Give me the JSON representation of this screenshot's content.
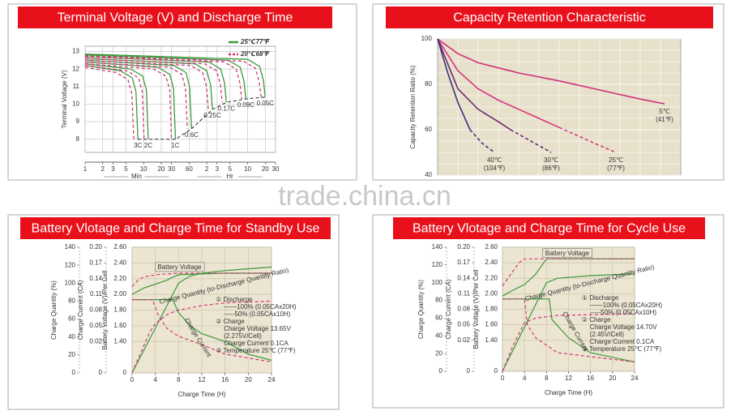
{
  "chart_data": [
    {
      "type": "line",
      "title": "Terminal Voltage (V) and Discharge Time",
      "ylabel": "Terminal Voltage (V)",
      "x_units": [
        "Min",
        "Hr"
      ],
      "log_x": true,
      "xlim": [
        1,
        1800
      ],
      "xticks": [
        1,
        2,
        3,
        5,
        10,
        20,
        30,
        60,
        {
          "value": 120,
          "label": "2"
        },
        {
          "value": 180,
          "label": "3"
        },
        {
          "value": 300,
          "label": "5"
        },
        {
          "value": 600,
          "label": "10"
        },
        {
          "value": 1200,
          "label": "20"
        },
        {
          "value": 1800,
          "label": "30"
        }
      ],
      "ylim": [
        7.25,
        13.3
      ],
      "yticks": [
        8,
        9,
        10,
        11,
        12,
        13
      ],
      "grid": true,
      "legend": "upper right",
      "series": [
        {
          "name": "25℃77℉",
          "color": "#3a9a3a",
          "dashed": false
        },
        {
          "name": "20℃68℉",
          "color": "#d3357a",
          "dashed": true
        }
      ],
      "curves": [
        {
          "label": "3C",
          "lines": [
            {
              "x": [
                1,
                4,
                6.4,
                7.4,
                8
              ],
              "values": [
                12.2,
                11.9,
                11.5,
                10.7,
                8
              ]
            },
            {
              "x": [
                1,
                3.4,
                5.4,
                6.3,
                6.8
              ],
              "values": [
                12.1,
                11.8,
                11.4,
                10.6,
                8
              ]
            }
          ]
        },
        {
          "label": "2C",
          "lines": [
            {
              "x": [
                1,
                6,
                9.6,
                11.2,
                12
              ],
              "values": [
                12.3,
                12,
                11.6,
                10.8,
                8
              ]
            },
            {
              "x": [
                1,
                5.1,
                8.2,
                9.5,
                10.2
              ],
              "values": [
                12.2,
                11.9,
                11.5,
                10.7,
                8
              ]
            }
          ]
        },
        {
          "label": "1C",
          "lines": [
            {
              "x": [
                1,
                17.5,
                28,
                32.5,
                35
              ],
              "values": [
                12.4,
                12.1,
                11.7,
                10.9,
                8
              ]
            },
            {
              "x": [
                1,
                15,
                24,
                28,
                30
              ],
              "values": [
                12.3,
                12,
                11.6,
                10.8,
                8
              ]
            }
          ]
        },
        {
          "label": "0.6C",
          "lines": [
            {
              "x": [
                1,
                33,
                53,
                61,
                66
              ],
              "values": [
                12.5,
                12.2,
                11.8,
                11,
                8.6
              ]
            },
            {
              "x": [
                1,
                28,
                45,
                52,
                56
              ],
              "values": [
                12.4,
                12.1,
                11.7,
                10.9,
                8.6
              ]
            }
          ]
        },
        {
          "label": "0.25C",
          "lines": [
            {
              "x": [
                1,
                75,
                120,
                140,
                150
              ],
              "values": [
                12.6,
                12.3,
                11.9,
                11.1,
                9.7
              ]
            },
            {
              "x": [
                1,
                64,
                102,
                119,
                128
              ],
              "values": [
                12.5,
                12.2,
                11.8,
                11,
                9.7
              ]
            }
          ]
        },
        {
          "label": "0.17C",
          "lines": [
            {
              "x": [
                1,
                130,
                208,
                242,
                260
              ],
              "values": [
                12.7,
                12.4,
                12,
                11.2,
                10.1
              ]
            },
            {
              "x": [
                1,
                110,
                177,
                206,
                221
              ],
              "values": [
                12.6,
                12.3,
                11.9,
                11.1,
                10.1
              ]
            }
          ]
        },
        {
          "label": "0.09C",
          "lines": [
            {
              "x": [
                1,
                280,
                448,
                521,
                560
              ],
              "values": [
                12.8,
                12.5,
                12.1,
                11.3,
                10.3
              ]
            },
            {
              "x": [
                1,
                238,
                381,
                443,
                476
              ],
              "values": [
                12.7,
                12.4,
                12,
                11.2,
                10.3
              ]
            }
          ]
        },
        {
          "label": "0.05C",
          "lines": [
            {
              "x": [
                1,
                600,
                960,
                1116,
                1200
              ],
              "values": [
                12.85,
                12.55,
                12.15,
                11.35,
                10.4
              ]
            },
            {
              "x": [
                1,
                510,
                816,
                949,
                1020
              ],
              "values": [
                12.75,
                12.45,
                12.05,
                11.25,
                10.4
              ]
            }
          ]
        }
      ],
      "end_line": {
        "color": "#222222",
        "dashed": true,
        "x": [
          8,
          12,
          35,
          66,
          150,
          260,
          560,
          1200
        ],
        "values": [
          8,
          8,
          8,
          8.6,
          9.7,
          10.1,
          10.3,
          10.4
        ]
      }
    },
    {
      "type": "line",
      "title": "Capacity Retention Characteristic",
      "ylabel": "Capacity Retention Ratio (%)",
      "xlim": [
        0,
        12
      ],
      "ylim": [
        40,
        100
      ],
      "yticks": [
        40,
        60,
        80,
        100
      ],
      "background": "#e7e0cb",
      "xgrid": [
        1,
        2,
        3,
        4,
        5,
        6,
        7,
        8,
        9,
        10,
        11
      ],
      "ygrid": [
        45,
        50,
        55,
        65,
        70,
        75,
        85,
        90,
        95
      ],
      "series": [
        {
          "name": "5℃",
          "sub": "(41℉)",
          "color": "#d0307a",
          "x": [
            0,
            1,
            2,
            4,
            6,
            8,
            10,
            11.2
          ],
          "values": [
            100,
            93.5,
            89.5,
            85,
            81.5,
            77.5,
            73.5,
            71.4
          ]
        },
        {
          "name": "25℃",
          "sub": "(77℉)",
          "color": "#d8367c",
          "dashed_from": 6,
          "x": [
            0,
            1,
            2,
            3,
            4,
            5,
            6,
            7,
            8,
            8.8
          ],
          "values": [
            100,
            86,
            78,
            73,
            69,
            65,
            61,
            57,
            53,
            50
          ]
        },
        {
          "name": "30℃",
          "sub": "(86℉)",
          "color": "#6a2a6e",
          "dashed_from": 4,
          "x": [
            0,
            1,
            2,
            3,
            3.6,
            4.6,
            5.6
          ],
          "values": [
            100,
            78,
            69,
            63.5,
            60,
            55,
            50
          ]
        },
        {
          "name": "40℃",
          "sub": "(104℉)",
          "color": "#34357f",
          "dashed_from": 3,
          "x": [
            0,
            0.5,
            1,
            1.6,
            2.2,
            2.8
          ],
          "values": [
            100,
            85,
            72,
            60,
            54,
            50
          ]
        }
      ]
    },
    {
      "type": "line",
      "title": "Battery Vlotage and Charge Time for Standby Use",
      "xlabel": "Charge Time (H)",
      "xlim": [
        0,
        24
      ],
      "xticks": [
        0,
        4,
        8,
        12,
        16,
        20,
        24
      ],
      "background": "#ebe5d1",
      "grid": true,
      "axes": [
        {
          "label": "Charge Quantity (%)",
          "lim": [
            0,
            140
          ],
          "ticks": [
            140,
            120,
            100,
            80,
            60,
            40,
            20,
            0
          ]
        },
        {
          "label": "Charge Current (CA)",
          "lim": [
            0,
            0.2
          ],
          "break": 0.02,
          "ticks": [
            {
              "value": 0.2,
              "label": "0.20"
            },
            0.17,
            0.14,
            0.11,
            0.08,
            0.05,
            0.02,
            0
          ]
        },
        {
          "label": "Battery Voltage (V)/Per Cell",
          "lim": [
            0,
            2.6
          ],
          "break": 1.4,
          "ticks": [
            {
              "value": 2.6,
              "label": "2.60"
            },
            {
              "value": 2.4,
              "label": "2.40"
            },
            {
              "value": 2.2,
              "label": "2.20"
            },
            {
              "value": 2.0,
              "label": "2.00"
            },
            {
              "value": 1.8,
              "label": "1.80"
            },
            {
              "value": 1.6,
              "label": "1.60"
            },
            {
              "value": 1.4,
              "label": "1.40"
            },
            0
          ]
        }
      ],
      "series": [
        {
          "color": "#3a9a3a",
          "dashed": false,
          "axis": 2,
          "x": [
            0,
            2,
            4,
            6,
            7,
            8,
            12,
            16,
            20,
            24
          ],
          "values": [
            2.0,
            2.08,
            2.13,
            2.18,
            2.22,
            2.25,
            2.26,
            2.27,
            2.27,
            2.27
          ]
        },
        {
          "color": "#d3357a",
          "dashed": true,
          "axis": 2,
          "x": [
            0,
            1,
            2,
            4,
            8,
            12,
            24
          ],
          "values": [
            2.1,
            2.18,
            2.22,
            2.25,
            2.27,
            2.27,
            2.27
          ]
        },
        {
          "color": "#3a9a3a",
          "dashed": false,
          "axis": 1,
          "x": [
            0,
            7,
            8,
            10,
            12,
            16,
            20,
            24
          ],
          "values": [
            0.1,
            0.1,
            0.075,
            0.05,
            0.035,
            0.02,
            0.012,
            0.008
          ]
        },
        {
          "color": "#d3357a",
          "dashed": true,
          "axis": 1,
          "x": [
            0,
            3.5,
            4.5,
            6,
            8,
            12,
            16,
            24
          ],
          "values": [
            0.1,
            0.1,
            0.07,
            0.045,
            0.03,
            0.018,
            0.012,
            0.007
          ]
        },
        {
          "color": "#3a9a3a",
          "dashed": false,
          "axis": 0,
          "x": [
            0,
            2,
            4,
            6,
            8,
            10,
            12,
            16,
            20,
            24
          ],
          "values": [
            0,
            25,
            50,
            75,
            100,
            108,
            111,
            114,
            116,
            118
          ]
        },
        {
          "color": "#d3357a",
          "dashed": true,
          "axis": 0,
          "x": [
            0,
            1,
            2,
            3,
            4,
            6,
            8,
            12,
            16,
            24
          ],
          "values": [
            0,
            15,
            30,
            45,
            55,
            65,
            70,
            75,
            78,
            80
          ]
        }
      ],
      "annotations": [
        "Battery Voltage",
        "Charge Quantity (to-Discharge Quantity Ratio)",
        "Charge Current"
      ],
      "notes": [
        "① Discharge",
        "——100% (0.05CAx20H)",
        "-----50% (0.05CAx10H)",
        "② Charge",
        "Charge Voltage 13.65V",
        "(2.275V/Cell)",
        "Charge Current 0.1CA",
        "③ Temperature 25℃ (77℉)"
      ]
    },
    {
      "type": "line",
      "title": "Battery Vlotage and Charge Time for Cycle Use",
      "xlabel": "Charge Time (H)",
      "xlim": [
        0,
        24
      ],
      "xticks": [
        0,
        4,
        8,
        12,
        16,
        20,
        24
      ],
      "background": "#ebe5d1",
      "grid": true,
      "axes": [
        {
          "label": "Charge Quantity (%)",
          "lim": [
            0,
            140
          ],
          "ticks": [
            140,
            120,
            100,
            80,
            60,
            40,
            20,
            0
          ]
        },
        {
          "label": "Charge Current (CA)",
          "lim": [
            0,
            0.2
          ],
          "break": 0.02,
          "ticks": [
            {
              "value": 0.2,
              "label": "0.20"
            },
            0.17,
            0.14,
            0.11,
            0.08,
            0.05,
            0.02,
            0
          ]
        },
        {
          "label": "Battery Voltage (V)/Per Cell",
          "lim": [
            0,
            2.6
          ],
          "break": 1.4,
          "ticks": [
            {
              "value": 2.6,
              "label": "2.60"
            },
            {
              "value": 2.4,
              "label": "2.40"
            },
            {
              "value": 2.2,
              "label": "2.20"
            },
            {
              "value": 2.0,
              "label": "2.00"
            },
            {
              "value": 1.8,
              "label": "1.80"
            },
            {
              "value": 1.6,
              "label": "1.60"
            },
            {
              "value": 1.4,
              "label": "1.40"
            },
            0
          ]
        }
      ],
      "series": [
        {
          "color": "#3a9a3a",
          "dashed": false,
          "axis": 2,
          "x": [
            0,
            2,
            4,
            6,
            8,
            24
          ],
          "values": [
            1.97,
            2.05,
            2.12,
            2.25,
            2.45,
            2.45
          ]
        },
        {
          "color": "#d3357a",
          "dashed": true,
          "axis": 2,
          "x": [
            0,
            1,
            2,
            3,
            4,
            24
          ],
          "values": [
            2.1,
            2.2,
            2.3,
            2.4,
            2.45,
            2.45
          ]
        },
        {
          "color": "#3a9a3a",
          "dashed": false,
          "axis": 1,
          "x": [
            0,
            8.5,
            9,
            12,
            16,
            24
          ],
          "values": [
            0.1,
            0.1,
            0.06,
            0.025,
            0.012,
            0.006
          ]
        },
        {
          "color": "#d3357a",
          "dashed": true,
          "axis": 1,
          "x": [
            0,
            4,
            4.5,
            6,
            10,
            24
          ],
          "values": [
            0.1,
            0.1,
            0.05,
            0.025,
            0.012,
            0.006
          ]
        },
        {
          "color": "#3a9a3a",
          "dashed": false,
          "axis": 0,
          "x": [
            0,
            2,
            4,
            6,
            8,
            10,
            16,
            24
          ],
          "values": [
            0,
            25,
            50,
            75,
            100,
            105,
            108,
            110
          ]
        },
        {
          "color": "#d3357a",
          "dashed": true,
          "axis": 0,
          "x": [
            0,
            2,
            4,
            6,
            10,
            24
          ],
          "values": [
            0,
            30,
            55,
            60,
            63,
            65
          ]
        }
      ],
      "annotations": [
        "Battery Voltage",
        "Charge Quantity (to-Discharge Quantity Ratio)",
        "Charge Current"
      ],
      "notes": [
        "① Discharge",
        "——100% (0.05CAx20H)",
        "-----50% (0.05CAx10H)",
        "② Charge",
        "Charge Voltage 14.70V",
        "(2.45V/Cell)",
        "Charge Current 0.1CA",
        "③ Temperature 25℃ (77℉)"
      ]
    }
  ],
  "watermark": "trade.china.cn"
}
